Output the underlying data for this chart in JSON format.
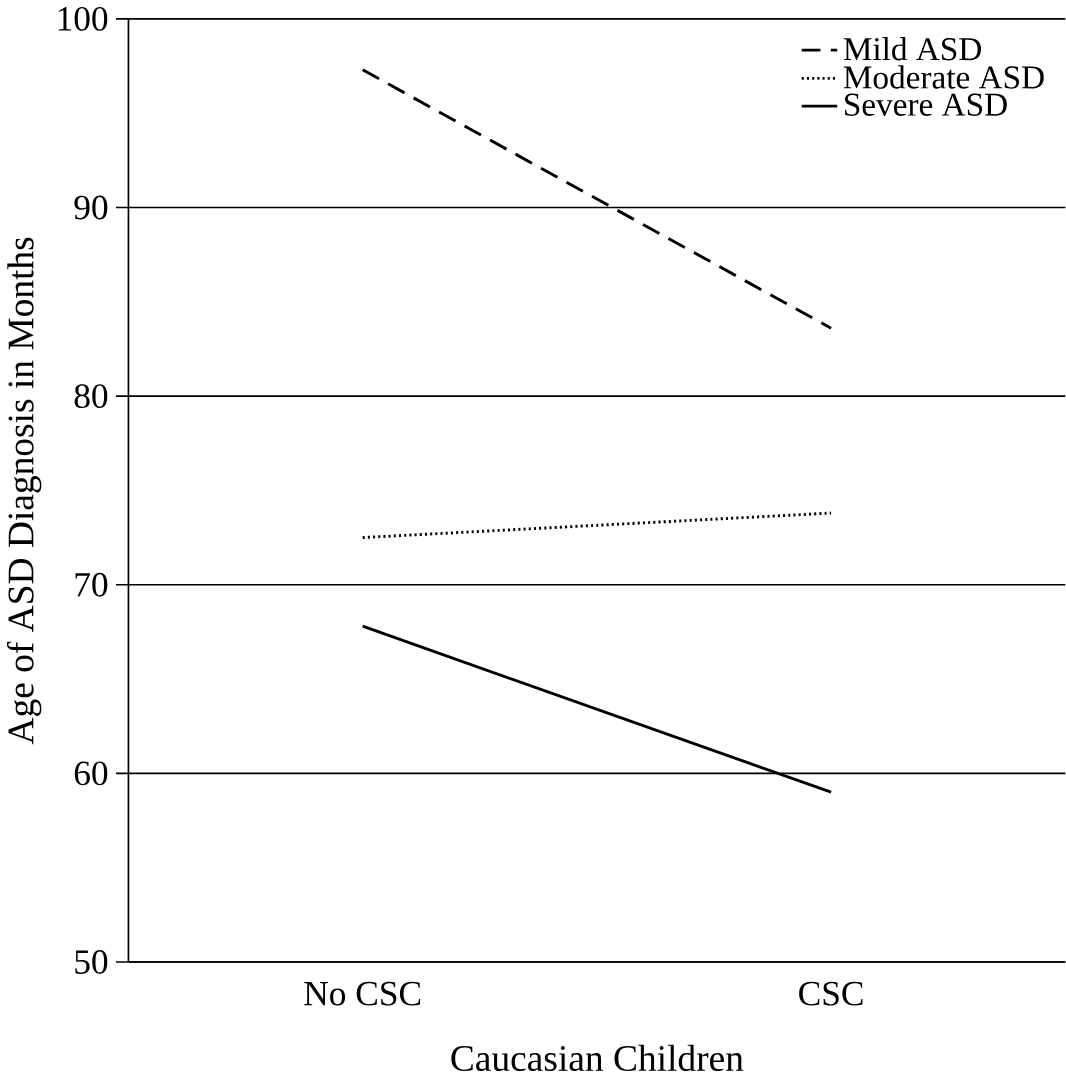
{
  "chart_data": {
    "type": "line",
    "xlabel": "Caucasian Children",
    "ylabel": "Age of ASD Diagnosis in Months",
    "categories": [
      "No CSC",
      "CSC"
    ],
    "series": [
      {
        "name": "Mild ASD",
        "color": "#000000",
        "line_style": "dashed",
        "values": [
          97.3,
          83.6
        ]
      },
      {
        "name": "Moderate ASD",
        "color": "#000000",
        "line_style": "dotted",
        "values": [
          72.5,
          73.8
        ]
      },
      {
        "name": "Severe ASD",
        "color": "#000000",
        "line_style": "solid",
        "values": [
          67.8,
          59.0
        ]
      }
    ],
    "ylim": [
      50,
      100
    ],
    "yticks": [
      50,
      60,
      70,
      80,
      90,
      100
    ],
    "grid": "y",
    "legend": "top right",
    "marker": "none"
  }
}
